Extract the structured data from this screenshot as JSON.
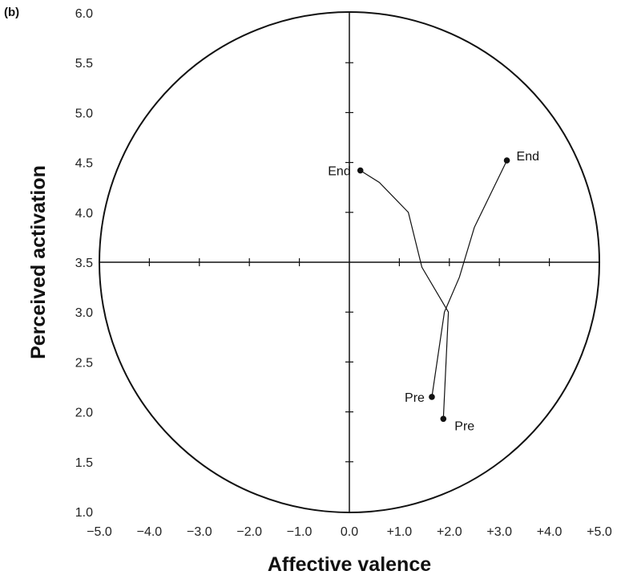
{
  "chart_data": {
    "type": "line",
    "panel_label": "(b)",
    "xlabel": "Affective valence",
    "ylabel": "Perceived activation",
    "xlim": [
      -5.0,
      5.0
    ],
    "ylim": [
      1.0,
      6.0
    ],
    "x_ticks": [
      "−5.0",
      "−4.0",
      "−3.0",
      "−2.0",
      "−1.0",
      "0.0",
      "+1.0",
      "+2.0",
      "+3.0",
      "+4.0",
      "+5.0"
    ],
    "x_tick_values": [
      -5,
      -4,
      -3,
      -2,
      -1,
      0,
      1,
      2,
      3,
      4,
      5
    ],
    "y_ticks": [
      "1.0",
      "1.5",
      "2.0",
      "2.5",
      "3.0",
      "3.5",
      "4.0",
      "4.5",
      "5.0",
      "5.5",
      "6.0"
    ],
    "y_tick_values": [
      1.0,
      1.5,
      2.0,
      2.5,
      3.0,
      3.5,
      4.0,
      4.5,
      5.0,
      5.5,
      6.0
    ],
    "circumplex": true,
    "series": [
      {
        "points": [
          [
            1.65,
            2.15
          ],
          [
            1.9,
            3.0
          ],
          [
            2.2,
            3.35
          ],
          [
            2.5,
            3.85
          ],
          [
            3.15,
            4.52
          ]
        ],
        "start_label": "Pre",
        "end_label": "End"
      },
      {
        "points": [
          [
            1.88,
            1.93
          ],
          [
            1.98,
            3.0
          ],
          [
            1.45,
            3.45
          ],
          [
            1.18,
            4.0
          ],
          [
            0.6,
            4.3
          ],
          [
            0.22,
            4.42
          ]
        ],
        "start_label": "Pre",
        "end_label": "End"
      }
    ]
  }
}
